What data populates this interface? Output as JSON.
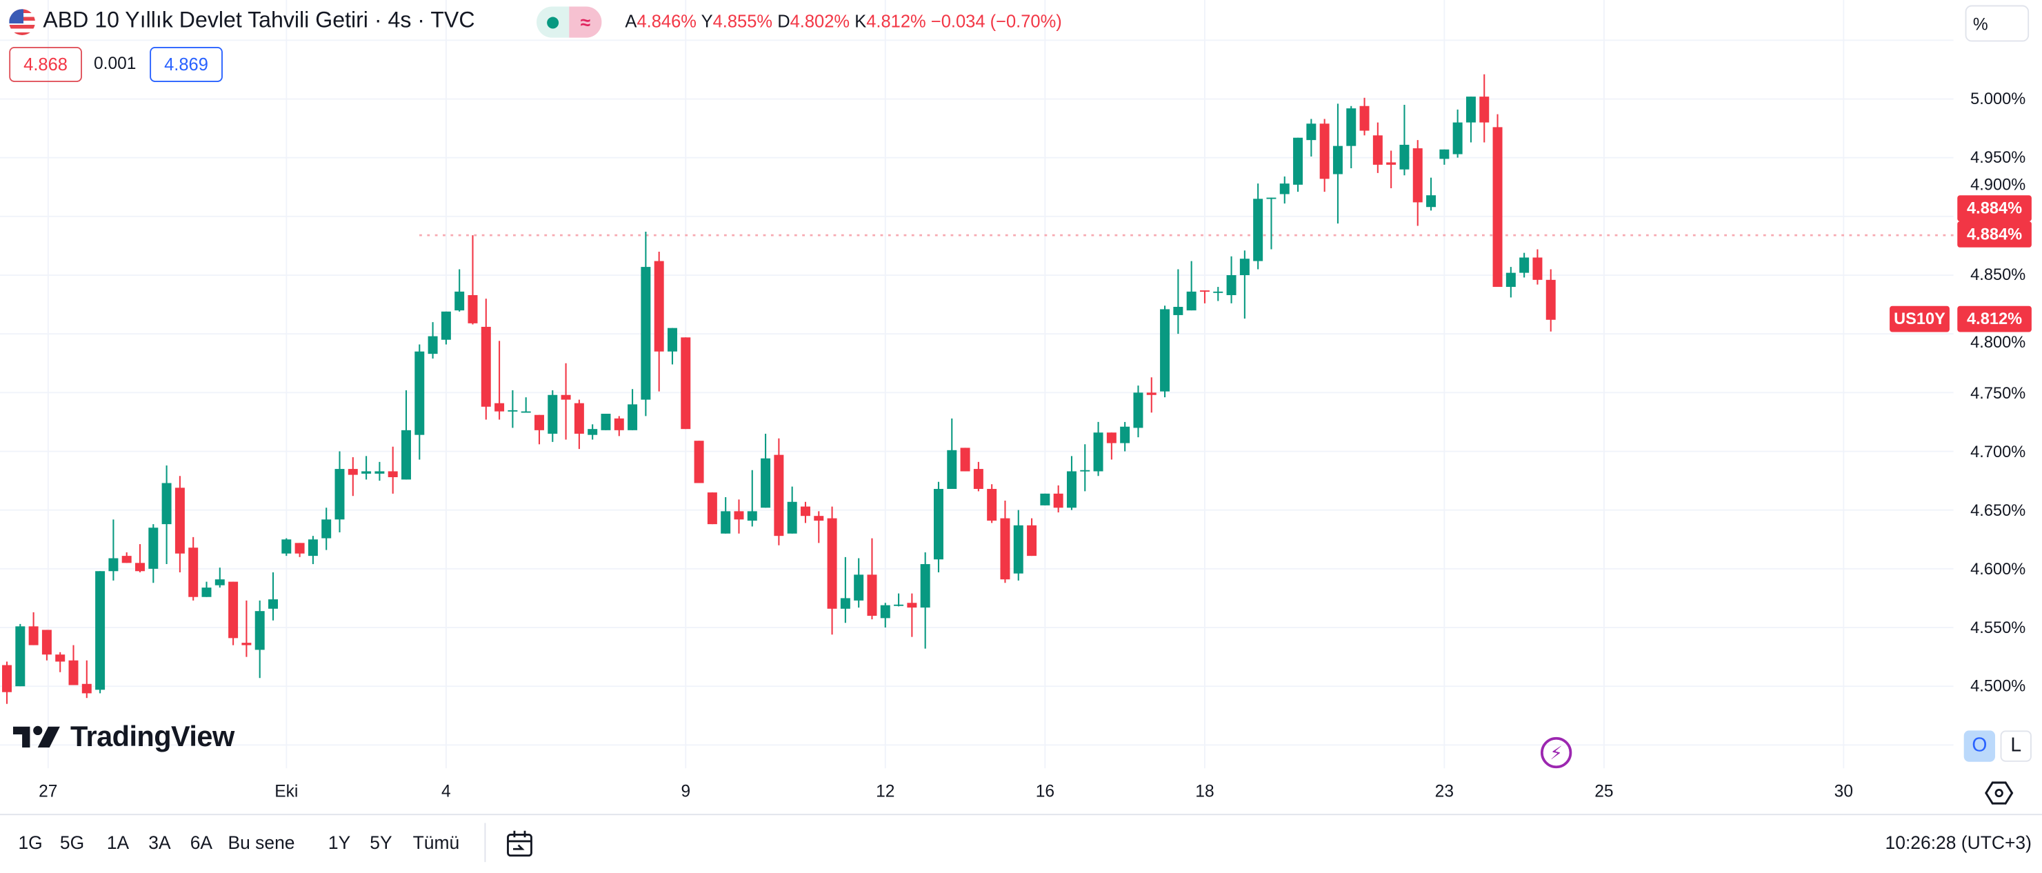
{
  "header": {
    "title": "ABD 10 Yıllık Devlet Tahvili Getiri · 4s · TVC",
    "ohlc": [
      {
        "key": "A",
        "value": "4.846%"
      },
      {
        "key": "Y",
        "value": "4.855%"
      },
      {
        "key": "D",
        "value": "4.802%"
      },
      {
        "key": "K",
        "value": "4.812%"
      }
    ],
    "change": "−0.034 (−0.70%)",
    "bid": "4.868",
    "spread": "0.001",
    "ask": "4.869",
    "market_status_icon": "green-dot-icon",
    "delay_icon": "approx-icon"
  },
  "price_axis": {
    "unit_button": "%",
    "labels": [
      "5.000%",
      "4.950%",
      "4.900%",
      "4.850%",
      "4.800%",
      "4.750%",
      "4.700%",
      "4.650%",
      "4.600%",
      "4.550%",
      "4.500%"
    ],
    "high_tag_1": "4.884%",
    "high_tag_2": "4.884%",
    "symbol_tag": "US10Y",
    "last_price_tag": "4.812%",
    "log_button": "L",
    "auto_button": "O"
  },
  "time_axis": {
    "labels": [
      {
        "text": "27",
        "index": 4.1
      },
      {
        "text": "Eki",
        "index": 22
      },
      {
        "text": "4",
        "index": 34
      },
      {
        "text": "9",
        "index": 52
      },
      {
        "text": "12",
        "index": 67
      },
      {
        "text": "16",
        "index": 79
      },
      {
        "text": "18",
        "index": 91
      },
      {
        "text": "23",
        "index": 109
      },
      {
        "text": "25",
        "index": 121
      },
      {
        "text": "30",
        "index": 139
      }
    ]
  },
  "logo": "TradingView",
  "bottom_bar": {
    "ranges": [
      "1G",
      "5G",
      "1A",
      "3A",
      "6A",
      "Bu sene",
      "1Y",
      "5Y",
      "Tümü"
    ],
    "clock": "10:26:28 (UTC+3)"
  },
  "colors": {
    "up": "#089981",
    "down": "#F23645",
    "grid": "#f0f3fa",
    "accent": "#2962ff"
  },
  "chart_data": {
    "type": "candlestick",
    "title": "ABD 10 Yıllık Devlet Tahvili Getiri",
    "ylabel": "%",
    "ylim": [
      4.45,
      5.05
    ],
    "high_line": 4.884,
    "last": 4.812,
    "candles_ohlc": [
      [
        4.518,
        4.521,
        4.485,
        4.495
      ],
      [
        4.5,
        4.553,
        4.5,
        4.551
      ],
      [
        4.551,
        4.563,
        4.535,
        4.535
      ],
      [
        4.548,
        4.548,
        4.522,
        4.527
      ],
      [
        4.527,
        4.529,
        4.512,
        4.521
      ],
      [
        4.522,
        4.535,
        4.501,
        4.501
      ],
      [
        4.502,
        4.522,
        4.49,
        4.494
      ],
      [
        4.497,
        4.598,
        4.494,
        4.598
      ],
      [
        4.598,
        4.642,
        4.59,
        4.609
      ],
      [
        4.611,
        4.614,
        4.605,
        4.605
      ],
      [
        4.605,
        4.621,
        4.597,
        4.598
      ],
      [
        4.6,
        4.638,
        4.588,
        4.635
      ],
      [
        4.638,
        4.688,
        4.604,
        4.673
      ],
      [
        4.669,
        4.679,
        4.597,
        4.613
      ],
      [
        4.618,
        4.627,
        4.573,
        4.576
      ],
      [
        4.576,
        4.589,
        4.576,
        4.584
      ],
      [
        4.586,
        4.601,
        4.584,
        4.591
      ],
      [
        4.589,
        4.589,
        4.535,
        4.541
      ],
      [
        4.537,
        4.573,
        4.525,
        4.535
      ],
      [
        4.531,
        4.573,
        4.507,
        4.564
      ],
      [
        4.566,
        4.597,
        4.556,
        4.574
      ],
      [
        4.613,
        4.626,
        4.611,
        4.625
      ],
      [
        4.622,
        4.622,
        4.61,
        4.613
      ],
      [
        4.611,
        4.628,
        4.604,
        4.625
      ],
      [
        4.626,
        4.652,
        4.616,
        4.642
      ],
      [
        4.642,
        4.7,
        4.631,
        4.685
      ],
      [
        4.685,
        4.695,
        4.662,
        4.68
      ],
      [
        4.681,
        4.696,
        4.676,
        4.683
      ],
      [
        4.681,
        4.691,
        4.675,
        4.683
      ],
      [
        4.683,
        4.704,
        4.664,
        4.678
      ],
      [
        4.676,
        4.752,
        4.676,
        4.718
      ],
      [
        4.714,
        4.791,
        4.693,
        4.785
      ],
      [
        4.783,
        4.81,
        4.779,
        4.798
      ],
      [
        4.795,
        4.819,
        4.791,
        4.819
      ],
      [
        4.82,
        4.855,
        4.819,
        4.836
      ],
      [
        4.833,
        4.884,
        4.808,
        4.809
      ],
      [
        4.806,
        4.83,
        4.727,
        4.738
      ],
      [
        4.741,
        4.794,
        4.727,
        4.734
      ],
      [
        4.734,
        4.752,
        4.72,
        4.735
      ],
      [
        4.733,
        4.746,
        4.733,
        4.734
      ],
      [
        4.731,
        4.731,
        4.706,
        4.718
      ],
      [
        4.715,
        4.752,
        4.708,
        4.748
      ],
      [
        4.748,
        4.775,
        4.71,
        4.744
      ],
      [
        4.741,
        4.744,
        4.702,
        4.715
      ],
      [
        4.714,
        4.723,
        4.71,
        4.719
      ],
      [
        4.718,
        4.732,
        4.718,
        4.732
      ],
      [
        4.728,
        4.73,
        4.713,
        4.718
      ],
      [
        4.718,
        4.753,
        4.718,
        4.74
      ],
      [
        4.744,
        4.887,
        4.73,
        4.857
      ],
      [
        4.862,
        4.87,
        4.751,
        4.785
      ],
      [
        4.785,
        4.805,
        4.774,
        4.805
      ],
      [
        4.797,
        4.797,
        4.719,
        4.719
      ],
      [
        4.709,
        4.709,
        4.673,
        4.673
      ],
      [
        4.665,
        4.665,
        4.638,
        4.638
      ],
      [
        4.63,
        4.661,
        4.63,
        4.649
      ],
      [
        4.649,
        4.659,
        4.63,
        4.642
      ],
      [
        4.641,
        4.684,
        4.636,
        4.649
      ],
      [
        4.652,
        4.715,
        4.652,
        4.694
      ],
      [
        4.697,
        4.711,
        4.62,
        4.628
      ],
      [
        4.63,
        4.67,
        4.63,
        4.657
      ],
      [
        4.653,
        4.657,
        4.639,
        4.645
      ],
      [
        4.645,
        4.649,
        4.622,
        4.641
      ],
      [
        4.643,
        4.653,
        4.544,
        4.566
      ],
      [
        4.566,
        4.61,
        4.554,
        4.575
      ],
      [
        4.573,
        4.609,
        4.567,
        4.595
      ],
      [
        4.595,
        4.626,
        4.557,
        4.56
      ],
      [
        4.558,
        4.571,
        4.55,
        4.569
      ],
      [
        4.569,
        4.579,
        4.568,
        4.5695
      ],
      [
        4.571,
        4.579,
        4.542,
        4.567
      ],
      [
        4.567,
        4.614,
        4.532,
        4.604
      ],
      [
        4.608,
        4.674,
        4.597,
        4.668
      ],
      [
        4.668,
        4.728,
        4.668,
        4.701
      ],
      [
        4.703,
        4.703,
        4.683,
        4.683
      ],
      [
        4.685,
        4.691,
        4.666,
        4.668
      ],
      [
        4.668,
        4.672,
        4.639,
        4.641
      ],
      [
        4.643,
        4.658,
        4.588,
        4.591
      ],
      [
        4.596,
        4.65,
        4.59,
        4.637
      ],
      [
        4.637,
        4.643,
        4.611,
        4.611
      ],
      [
        4.654,
        4.664,
        4.654,
        4.664
      ],
      [
        4.664,
        4.671,
        4.648,
        4.652
      ],
      [
        4.652,
        4.696,
        4.65,
        4.683
      ],
      [
        4.683,
        4.706,
        4.666,
        4.684
      ],
      [
        4.683,
        4.725,
        4.679,
        4.716
      ],
      [
        4.716,
        4.716,
        4.693,
        4.707
      ],
      [
        4.707,
        4.725,
        4.7,
        4.721
      ],
      [
        4.72,
        4.756,
        4.712,
        4.75
      ],
      [
        4.75,
        4.763,
        4.733,
        4.748
      ],
      [
        4.751,
        4.824,
        4.746,
        4.821
      ],
      [
        4.816,
        4.855,
        4.8,
        4.823
      ],
      [
        4.82,
        4.862,
        4.82,
        4.836
      ],
      [
        4.837,
        4.837,
        4.826,
        4.836
      ],
      [
        4.835,
        4.84,
        4.828,
        4.836
      ],
      [
        4.833,
        4.866,
        4.826,
        4.85
      ],
      [
        4.85,
        4.871,
        4.813,
        4.864
      ],
      [
        4.862,
        4.928,
        4.855,
        4.915
      ],
      [
        4.915,
        4.916,
        4.872,
        4.916
      ],
      [
        4.919,
        4.934,
        4.911,
        4.928
      ],
      [
        4.927,
        4.967,
        4.921,
        4.967
      ],
      [
        4.965,
        4.983,
        4.951,
        4.979
      ],
      [
        4.979,
        4.983,
        4.921,
        4.932
      ],
      [
        4.936,
        4.996,
        4.894,
        4.96
      ],
      [
        4.96,
        4.994,
        4.941,
        4.992
      ],
      [
        4.994,
        5.001,
        4.969,
        4.973
      ],
      [
        4.969,
        4.98,
        4.937,
        4.944
      ],
      [
        4.946,
        4.956,
        4.924,
        4.944
      ],
      [
        4.94,
        4.995,
        4.935,
        4.961
      ],
      [
        4.958,
        4.965,
        4.892,
        4.912
      ],
      [
        4.908,
        4.933,
        4.905,
        4.918
      ],
      [
        4.949,
        4.957,
        4.944,
        4.957
      ],
      [
        4.953,
        4.991,
        4.95,
        4.98
      ],
      [
        4.98,
        5.002,
        4.963,
        5.002
      ],
      [
        5.002,
        5.021,
        4.963,
        4.98
      ],
      [
        4.976,
        4.987,
        4.84,
        4.84
      ],
      [
        4.84,
        4.857,
        4.831,
        4.852
      ],
      [
        4.852,
        4.869,
        4.848,
        4.865
      ],
      [
        4.865,
        4.872,
        4.842,
        4.846
      ],
      [
        4.846,
        4.855,
        4.802,
        4.812
      ]
    ]
  }
}
